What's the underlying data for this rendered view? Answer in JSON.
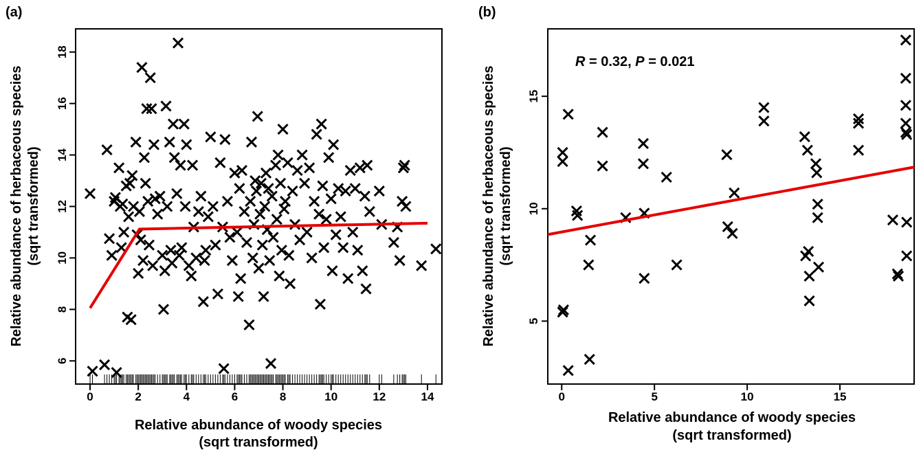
{
  "chart_data": [
    {
      "type": "scatter",
      "panel_label": "(a)",
      "title": "",
      "xlabel": [
        "Relative abundance of woody species",
        "(sqrt transformed)"
      ],
      "ylabel": [
        "Relative abundance of herbaceous species",
        "(sqrt transformed)"
      ],
      "xlim": [
        -0.6,
        14.6
      ],
      "ylim": [
        5.1,
        18.9
      ],
      "xticks": [
        0,
        2,
        4,
        6,
        8,
        10,
        12,
        14
      ],
      "yticks": [
        6,
        8,
        10,
        12,
        14,
        16,
        18
      ],
      "grid": false,
      "legend": "none",
      "marker": "x",
      "marker_color": "#000000",
      "fit_line_color": "#e60000",
      "fit_line": {
        "type": "piecewise-linear",
        "x": [
          0,
          2.05,
          14
        ],
        "y": [
          8.05,
          11.12,
          11.35
        ]
      },
      "rug": true,
      "points": [
        [
          0.0,
          12.5
        ],
        [
          0.1,
          5.6
        ],
        [
          0.6,
          5.85
        ],
        [
          0.7,
          14.2
        ],
        [
          0.8,
          10.75
        ],
        [
          0.9,
          10.1
        ],
        [
          1.0,
          12.2
        ],
        [
          1.05,
          12.35
        ],
        [
          1.1,
          5.55
        ],
        [
          1.2,
          13.5
        ],
        [
          1.25,
          12.0
        ],
        [
          1.3,
          10.4
        ],
        [
          1.35,
          12.1
        ],
        [
          1.4,
          11.0
        ],
        [
          1.5,
          12.8
        ],
        [
          1.55,
          7.7
        ],
        [
          1.6,
          11.6
        ],
        [
          1.65,
          12.9
        ],
        [
          1.7,
          7.6
        ],
        [
          1.75,
          13.2
        ],
        [
          1.8,
          12.0
        ],
        [
          1.9,
          14.5
        ],
        [
          1.95,
          10.9
        ],
        [
          2.0,
          9.4
        ],
        [
          2.05,
          11.8
        ],
        [
          2.1,
          10.7
        ],
        [
          2.15,
          17.4
        ],
        [
          2.2,
          9.9
        ],
        [
          2.25,
          13.9
        ],
        [
          2.3,
          12.9
        ],
        [
          2.35,
          15.8
        ],
        [
          2.4,
          12.2
        ],
        [
          2.45,
          10.5
        ],
        [
          2.5,
          17.0
        ],
        [
          2.55,
          15.8
        ],
        [
          2.6,
          9.7
        ],
        [
          2.65,
          14.4
        ],
        [
          2.7,
          12.3
        ],
        [
          2.8,
          11.7
        ],
        [
          2.9,
          12.4
        ],
        [
          3.0,
          10.1
        ],
        [
          3.05,
          8.0
        ],
        [
          3.1,
          9.5
        ],
        [
          3.15,
          15.9
        ],
        [
          3.2,
          12.0
        ],
        [
          3.3,
          14.5
        ],
        [
          3.35,
          10.3
        ],
        [
          3.4,
          9.8
        ],
        [
          3.45,
          15.2
        ],
        [
          3.5,
          13.9
        ],
        [
          3.6,
          12.5
        ],
        [
          3.65,
          18.35
        ],
        [
          3.7,
          10.1
        ],
        [
          3.75,
          13.6
        ],
        [
          3.8,
          10.4
        ],
        [
          3.9,
          15.2
        ],
        [
          3.95,
          12.0
        ],
        [
          4.0,
          14.4
        ],
        [
          4.1,
          9.7
        ],
        [
          4.2,
          9.3
        ],
        [
          4.25,
          13.6
        ],
        [
          4.3,
          11.2
        ],
        [
          4.4,
          10.0
        ],
        [
          4.5,
          11.8
        ],
        [
          4.6,
          12.4
        ],
        [
          4.7,
          8.3
        ],
        [
          4.75,
          9.9
        ],
        [
          4.8,
          10.3
        ],
        [
          4.9,
          11.6
        ],
        [
          5.0,
          14.7
        ],
        [
          5.1,
          12.0
        ],
        [
          5.2,
          10.5
        ],
        [
          5.3,
          8.6
        ],
        [
          5.4,
          13.7
        ],
        [
          5.5,
          11.2
        ],
        [
          5.55,
          5.7
        ],
        [
          5.6,
          14.6
        ],
        [
          5.7,
          12.2
        ],
        [
          5.8,
          10.8
        ],
        [
          5.9,
          9.9
        ],
        [
          6.0,
          13.3
        ],
        [
          6.1,
          11.0
        ],
        [
          6.15,
          8.5
        ],
        [
          6.2,
          12.7
        ],
        [
          6.25,
          9.2
        ],
        [
          6.3,
          13.4
        ],
        [
          6.4,
          11.8
        ],
        [
          6.5,
          10.6
        ],
        [
          6.6,
          7.4
        ],
        [
          6.65,
          12.2
        ],
        [
          6.7,
          14.5
        ],
        [
          6.75,
          10.0
        ],
        [
          6.8,
          11.3
        ],
        [
          6.85,
          13.0
        ],
        [
          6.9,
          12.6
        ],
        [
          6.95,
          15.5
        ],
        [
          7.0,
          9.6
        ],
        [
          7.05,
          11.7
        ],
        [
          7.1,
          12.9
        ],
        [
          7.15,
          10.5
        ],
        [
          7.2,
          8.5
        ],
        [
          7.25,
          12.0
        ],
        [
          7.3,
          13.3
        ],
        [
          7.35,
          11.1
        ],
        [
          7.4,
          12.7
        ],
        [
          7.45,
          9.9
        ],
        [
          7.5,
          5.9
        ],
        [
          7.55,
          12.4
        ],
        [
          7.6,
          10.8
        ],
        [
          7.7,
          13.6
        ],
        [
          7.75,
          11.5
        ],
        [
          7.8,
          14.0
        ],
        [
          7.85,
          9.3
        ],
        [
          7.9,
          12.9
        ],
        [
          7.95,
          10.3
        ],
        [
          8.0,
          15.0
        ],
        [
          8.05,
          11.9
        ],
        [
          8.1,
          12.2
        ],
        [
          8.2,
          13.7
        ],
        [
          8.25,
          10.1
        ],
        [
          8.3,
          9.0
        ],
        [
          8.4,
          12.6
        ],
        [
          8.5,
          11.3
        ],
        [
          8.6,
          13.4
        ],
        [
          8.7,
          10.7
        ],
        [
          8.8,
          14.0
        ],
        [
          8.9,
          12.9
        ],
        [
          9.0,
          11.0
        ],
        [
          9.1,
          13.5
        ],
        [
          9.2,
          10.0
        ],
        [
          9.3,
          12.2
        ],
        [
          9.4,
          14.8
        ],
        [
          9.5,
          11.7
        ],
        [
          9.55,
          8.2
        ],
        [
          9.6,
          15.2
        ],
        [
          9.65,
          12.8
        ],
        [
          9.7,
          10.4
        ],
        [
          9.8,
          11.5
        ],
        [
          9.9,
          13.9
        ],
        [
          10.0,
          12.3
        ],
        [
          10.05,
          9.5
        ],
        [
          10.1,
          14.4
        ],
        [
          10.2,
          10.9
        ],
        [
          10.3,
          12.7
        ],
        [
          10.4,
          11.6
        ],
        [
          10.5,
          10.4
        ],
        [
          10.6,
          12.6
        ],
        [
          10.7,
          9.2
        ],
        [
          10.8,
          13.4
        ],
        [
          10.9,
          11.0
        ],
        [
          11.0,
          12.7
        ],
        [
          11.1,
          10.3
        ],
        [
          11.2,
          13.5
        ],
        [
          11.3,
          9.5
        ],
        [
          11.4,
          12.4
        ],
        [
          11.45,
          8.8
        ],
        [
          11.5,
          13.6
        ],
        [
          11.6,
          11.8
        ],
        [
          12.0,
          12.6
        ],
        [
          12.1,
          11.3
        ],
        [
          12.6,
          10.6
        ],
        [
          12.75,
          11.2
        ],
        [
          12.85,
          9.9
        ],
        [
          12.95,
          12.2
        ],
        [
          13.0,
          13.5
        ],
        [
          13.05,
          13.6
        ],
        [
          13.1,
          12.0
        ],
        [
          13.75,
          9.7
        ],
        [
          14.35,
          10.35
        ]
      ]
    },
    {
      "type": "scatter",
      "panel_label": "(b)",
      "title": "",
      "annotation": {
        "r_label": "R",
        "r_value": " = 0.32, ",
        "p_label": "P",
        "p_value": " = 0.021"
      },
      "xlabel": [
        "Relative abundance of woody species",
        "(sqrt transformed)"
      ],
      "ylabel": [
        "Relative abundance of herbaceous species",
        "(sqrt transformed)"
      ],
      "xlim": [
        -0.75,
        19.0
      ],
      "ylim": [
        2.2,
        18.0
      ],
      "xticks": [
        0,
        5,
        10,
        15
      ],
      "yticks": [
        5,
        10,
        15
      ],
      "grid": false,
      "legend": "none",
      "marker": "x",
      "marker_color": "#000000",
      "fit_line_color": "#e60000",
      "fit_line": {
        "type": "linear",
        "x": [
          -0.75,
          19.0
        ],
        "y": [
          8.85,
          11.85
        ]
      },
      "points": [
        [
          0.05,
          12.5
        ],
        [
          0.05,
          12.1
        ],
        [
          0.05,
          5.4
        ],
        [
          0.1,
          5.5
        ],
        [
          0.35,
          14.2
        ],
        [
          0.35,
          2.8
        ],
        [
          0.8,
          9.9
        ],
        [
          0.85,
          9.7
        ],
        [
          1.45,
          7.5
        ],
        [
          1.5,
          3.3
        ],
        [
          1.55,
          8.6
        ],
        [
          2.2,
          13.4
        ],
        [
          2.2,
          11.9
        ],
        [
          3.45,
          9.6
        ],
        [
          4.4,
          12.9
        ],
        [
          4.4,
          12.0
        ],
        [
          4.45,
          9.8
        ],
        [
          4.45,
          6.9
        ],
        [
          5.65,
          11.4
        ],
        [
          6.2,
          7.5
        ],
        [
          8.9,
          12.4
        ],
        [
          8.95,
          9.2
        ],
        [
          9.2,
          8.9
        ],
        [
          9.3,
          10.7
        ],
        [
          10.9,
          14.5
        ],
        [
          10.9,
          13.9
        ],
        [
          13.1,
          13.2
        ],
        [
          13.15,
          7.9
        ],
        [
          13.25,
          12.6
        ],
        [
          13.3,
          8.1
        ],
        [
          13.35,
          7.0
        ],
        [
          13.35,
          5.9
        ],
        [
          13.7,
          12.0
        ],
        [
          13.75,
          11.6
        ],
        [
          13.8,
          10.2
        ],
        [
          13.8,
          9.6
        ],
        [
          13.85,
          7.4
        ],
        [
          16.0,
          14.0
        ],
        [
          16.0,
          13.8
        ],
        [
          16.0,
          12.6
        ],
        [
          17.85,
          9.5
        ],
        [
          18.1,
          7.1
        ],
        [
          18.15,
          7.0
        ],
        [
          18.55,
          17.5
        ],
        [
          18.55,
          15.8
        ],
        [
          18.55,
          14.6
        ],
        [
          18.55,
          13.8
        ],
        [
          18.55,
          13.4
        ],
        [
          18.6,
          13.3
        ],
        [
          18.6,
          9.4
        ],
        [
          18.6,
          7.9
        ]
      ]
    }
  ]
}
